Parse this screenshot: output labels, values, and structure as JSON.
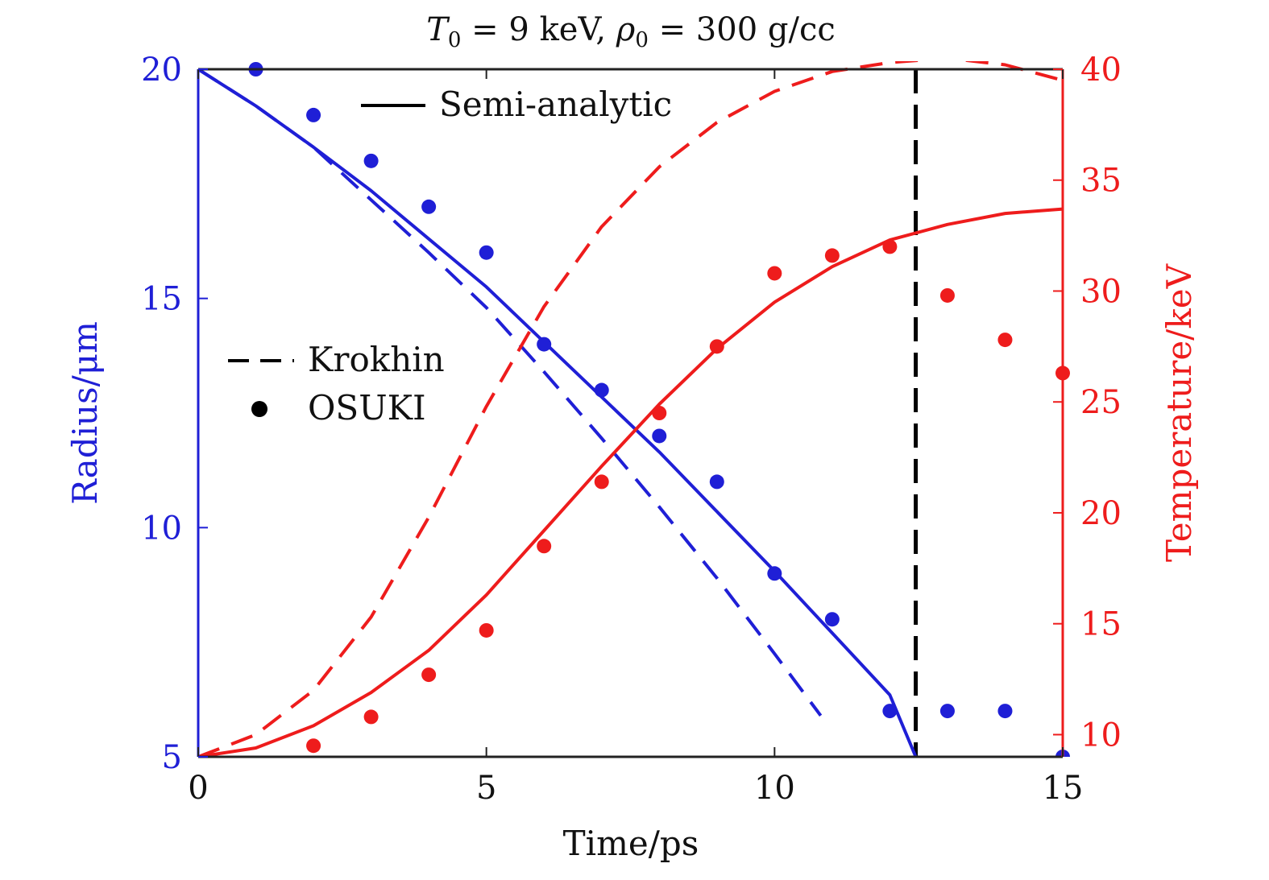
{
  "chart_data": {
    "type": "line",
    "title": {
      "t_symbol": "T",
      "t_sub": "0",
      "t_value": " = 9 keV, ",
      "rho_symbol": "ρ",
      "rho_sub": "0",
      "rho_value": " = 300 g/cc"
    },
    "xlabel": "Time/ps",
    "ylabel_left": "Radius/μm",
    "ylabel_right": "Temperature/keV",
    "xlim": [
      0,
      15
    ],
    "ylim_left": [
      5,
      20
    ],
    "ylim_right": [
      9,
      40
    ],
    "x_ticks": [
      0,
      5,
      10,
      15
    ],
    "y_ticks_left": [
      5,
      10,
      15,
      20
    ],
    "y_ticks_right": [
      10,
      15,
      20,
      25,
      30,
      35,
      40
    ],
    "legend": {
      "semi_analytic": "Semi-analytic",
      "krokhin": "Krokhin",
      "osuki": "OSUKI"
    },
    "colors": {
      "radius": "#1f1fd6",
      "temperature": "#ee1c1c",
      "reference": "#000000"
    },
    "reference_line_x": 12.45,
    "series": [
      {
        "name": "Radius (Semi-analytic)",
        "axis": "left",
        "style": "solid",
        "x": [
          0,
          1,
          2,
          3,
          4,
          5,
          6,
          7,
          8,
          9,
          10,
          11,
          12,
          12.45
        ],
        "y": [
          20,
          19.2,
          18.3,
          17.35,
          16.3,
          15.25,
          14.05,
          12.85,
          11.65,
          10.35,
          9.05,
          7.7,
          6.35,
          5.0
        ]
      },
      {
        "name": "Radius (Krokhin)",
        "axis": "left",
        "style": "dashed",
        "x": [
          0,
          1,
          2,
          3,
          4,
          5,
          6,
          7,
          8,
          9,
          10,
          10.8
        ],
        "y": [
          20,
          19.2,
          18.3,
          17.15,
          16.0,
          14.8,
          13.4,
          11.95,
          10.45,
          8.9,
          7.25,
          5.9
        ]
      },
      {
        "name": "Radius (OSUKI)",
        "axis": "left",
        "style": "points",
        "x": [
          1,
          2,
          3,
          4,
          5,
          6,
          7,
          8,
          9,
          10,
          11,
          12,
          13,
          14,
          15
        ],
        "y": [
          20,
          19,
          18,
          17,
          16,
          14,
          13,
          12,
          11,
          9,
          8,
          6,
          6,
          6,
          5
        ]
      },
      {
        "name": "Temperature (Semi-analytic)",
        "axis": "right",
        "style": "solid",
        "x": [
          0,
          1,
          2,
          3,
          4,
          5,
          6,
          7,
          8,
          9,
          10,
          11,
          12,
          13,
          14,
          15
        ],
        "y": [
          9.0,
          9.4,
          10.4,
          11.9,
          13.8,
          16.3,
          19.2,
          22.1,
          24.9,
          27.4,
          29.5,
          31.1,
          32.3,
          33.0,
          33.5,
          33.7
        ]
      },
      {
        "name": "Temperature (Krokhin)",
        "axis": "right",
        "style": "dashed",
        "x": [
          0,
          1,
          2,
          3,
          4,
          5,
          6,
          7,
          8,
          9,
          10,
          11,
          12,
          13,
          14,
          15
        ],
        "y": [
          9.0,
          10.0,
          12.0,
          15.3,
          19.8,
          24.8,
          29.3,
          32.9,
          35.6,
          37.6,
          39.0,
          39.9,
          40.3,
          40.5,
          40.2,
          39.5
        ]
      },
      {
        "name": "Temperature (OSUKI)",
        "axis": "right",
        "style": "points",
        "x": [
          2,
          3,
          4,
          5,
          6,
          7,
          8,
          9,
          10,
          11,
          12,
          13,
          14,
          15
        ],
        "y": [
          9.5,
          10.8,
          12.7,
          14.7,
          18.5,
          21.4,
          24.5,
          27.5,
          30.8,
          31.6,
          32.0,
          29.8,
          27.8,
          26.3
        ]
      }
    ]
  }
}
